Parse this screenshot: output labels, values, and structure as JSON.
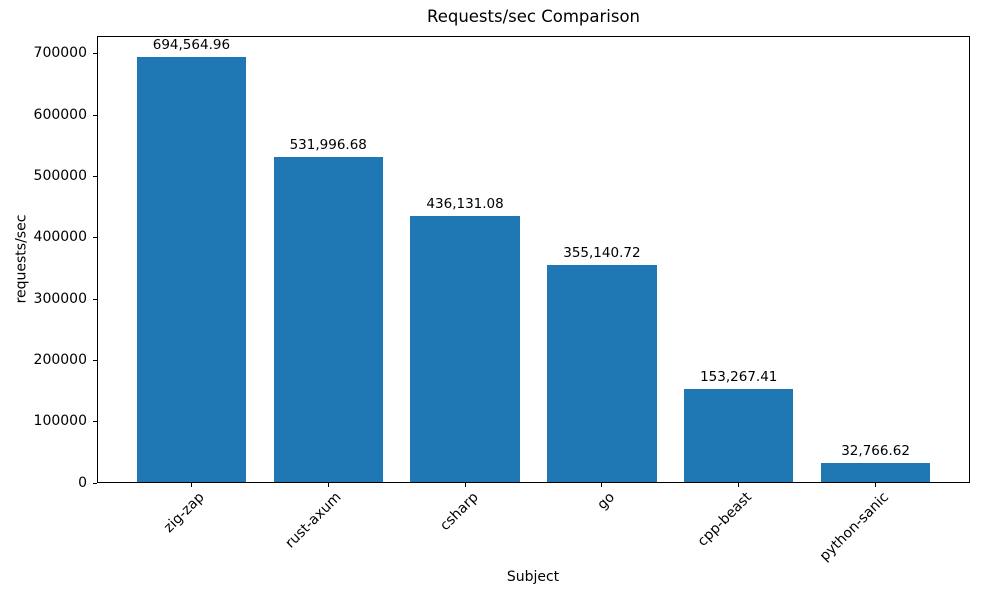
{
  "chart_data": {
    "type": "bar",
    "title": "Requests/sec Comparison",
    "xlabel": "Subject",
    "ylabel": "requests/sec",
    "categories": [
      "zig-zap",
      "rust-axum",
      "csharp",
      "go",
      "cpp-beast",
      "python-sanic"
    ],
    "values": [
      694564.96,
      531996.68,
      436131.08,
      355140.72,
      153267.41,
      32766.62
    ],
    "value_labels": [
      "694,564.96",
      "531,996.68",
      "436,131.08",
      "355,140.72",
      "153,267.41",
      "32,766.62"
    ],
    "yticks": [
      0,
      100000,
      200000,
      300000,
      400000,
      500000,
      600000,
      700000
    ],
    "ylim": [
      0,
      729293
    ],
    "bar_color": "#1f77b4",
    "grid": false,
    "legend": null,
    "x_tick_rotation_deg": 45
  }
}
